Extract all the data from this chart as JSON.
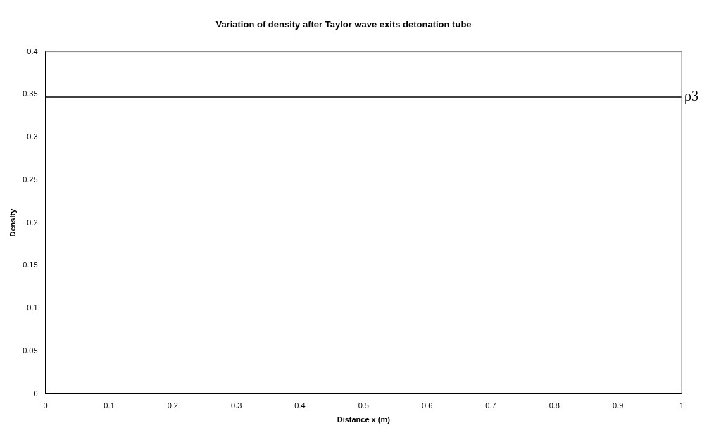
{
  "chart_data": {
    "type": "line",
    "title": "Variation of density after Taylor wave exits detonation tube",
    "xlabel": "Distance x (m)",
    "ylabel": "Density",
    "x": [
      0,
      1
    ],
    "series": [
      {
        "name": "ρ3",
        "color": "#000000",
        "values": [
          0.347,
          0.347
        ]
      }
    ],
    "xlim": [
      0,
      1
    ],
    "xticks": [
      0,
      0.1,
      0.2,
      0.3,
      0.4,
      0.5,
      0.6,
      0.7,
      0.8,
      0.9,
      1
    ],
    "ylim": [
      0,
      0.4
    ],
    "yticks": [
      0,
      0.05,
      0.1,
      0.15,
      0.2,
      0.25,
      0.3,
      0.35,
      0.4
    ],
    "grid": false,
    "legend": false,
    "marker": "none",
    "line_style": "solid"
  }
}
